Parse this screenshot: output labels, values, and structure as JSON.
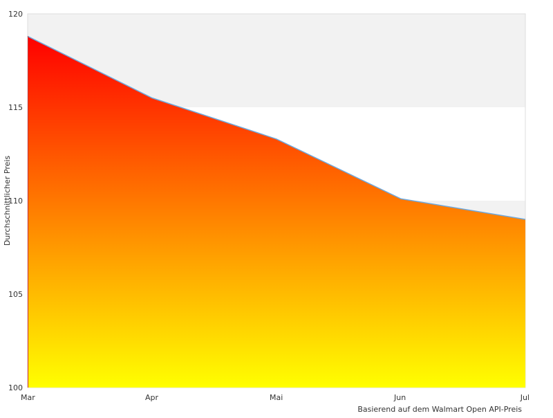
{
  "chart_data": {
    "type": "area",
    "categories": [
      "Mar",
      "Apr",
      "Mai",
      "Jun",
      "Jul"
    ],
    "series": [
      {
        "values": [
          118.8,
          115.5,
          113.3,
          110.1,
          109.0
        ]
      }
    ],
    "xlabel": "",
    "ylabel": "Durchschnittlicher Preis",
    "ylim": [
      100,
      120
    ],
    "yticks": [
      100,
      105,
      110,
      115,
      120
    ],
    "grid": "alternating horizontal bands",
    "legend": "none",
    "fill_gradient": {
      "top": "#ff0000",
      "bottom": "#ffff00"
    },
    "line_color": "#6fa8dc",
    "band_color": "#f2f2f2",
    "credit": "Basierend auf dem Walmart Open API-Preis"
  }
}
